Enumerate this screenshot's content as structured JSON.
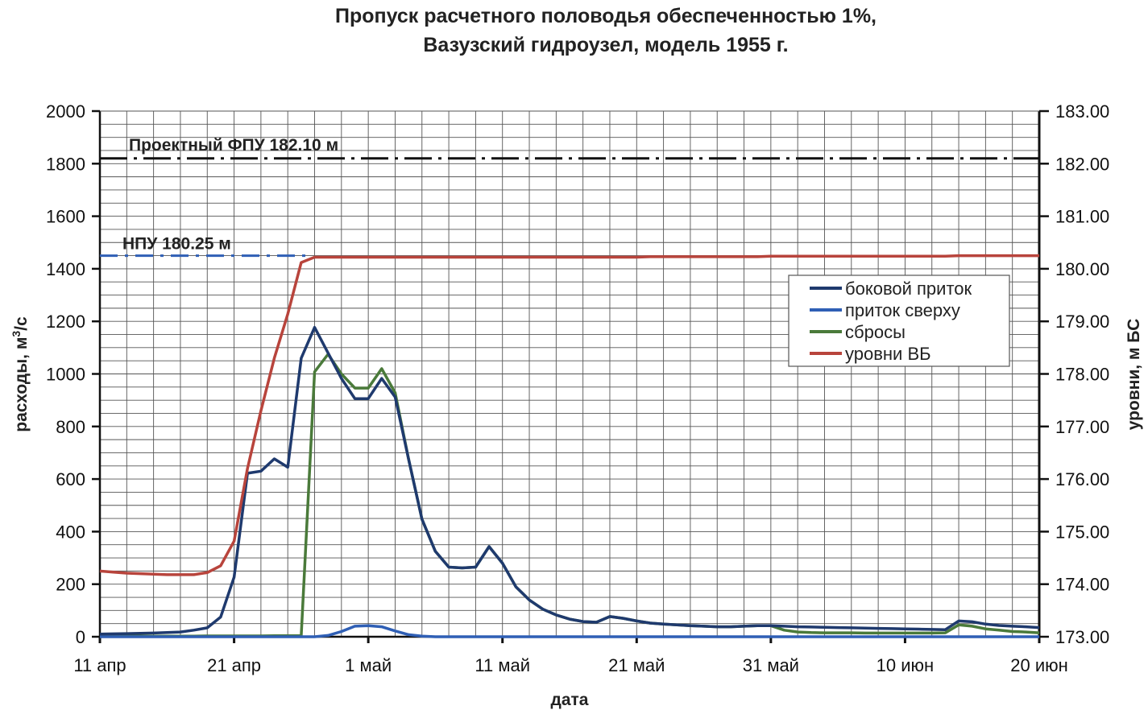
{
  "chart_data": {
    "type": "line",
    "title": [
      "Пропуск расчетного половодья обеспеченностью 1%,",
      "Вазузский гидроузел, модель 1955 г."
    ],
    "xlabel": "дата",
    "ylabel": "расходы, м³/с",
    "ylabel_parts": [
      "расходы, м",
      "3",
      "/с"
    ],
    "y2label": "уровни, м БС",
    "x_tick_labels": [
      "11 апр",
      "21 апр",
      "1 май",
      "11 май",
      "21 май",
      "31 май",
      "10 июн",
      "20 июн"
    ],
    "x_start": "11 апр",
    "x_days": [
      0,
      1,
      2,
      3,
      4,
      5,
      6,
      7,
      8,
      9,
      10,
      11,
      12,
      13,
      14,
      15,
      16,
      17,
      18,
      19,
      20,
      21,
      22,
      23,
      24,
      25,
      26,
      27,
      28,
      29,
      30,
      31,
      32,
      33,
      34,
      35,
      36,
      37,
      38,
      39,
      40,
      41,
      42,
      43,
      44,
      45,
      46,
      47,
      48,
      49,
      50,
      51,
      52,
      53,
      54,
      55,
      56,
      57,
      58,
      59,
      60,
      61,
      62,
      63,
      64,
      65,
      66,
      67,
      68,
      69,
      70
    ],
    "ylim": [
      0,
      2000
    ],
    "y_ticks": [
      "0",
      "200",
      "400",
      "600",
      "800",
      "1000",
      "1200",
      "1400",
      "1600",
      "1800",
      "2000"
    ],
    "y2lim": [
      173,
      183
    ],
    "y2_ticks": [
      "173.00",
      "174.00",
      "175.00",
      "176.00",
      "177.00",
      "178.00",
      "179.00",
      "180.00",
      "181.00",
      "182.00",
      "183.00"
    ],
    "grid": true,
    "legend_position": "right",
    "series": [
      {
        "name": "боковой приток",
        "axis": "left",
        "color": "#1f3a6e",
        "values": [
          10,
          11,
          12,
          13,
          14,
          16,
          18,
          25,
          34,
          75,
          227,
          622,
          630,
          677,
          645,
          1060,
          1177,
          1080,
          983,
          906,
          906,
          983,
          912,
          677,
          447,
          325,
          265,
          262,
          265,
          343,
          280,
          190,
          140,
          105,
          83,
          67,
          58,
          55,
          77,
          70,
          60,
          52,
          48,
          45,
          42,
          40,
          38,
          38,
          40,
          42,
          42,
          40,
          38,
          37,
          36,
          35,
          34,
          33,
          32,
          31,
          30,
          29,
          28,
          27,
          60,
          57,
          48,
          43,
          40,
          38,
          35
        ]
      },
      {
        "name": "приток сверху",
        "axis": "left",
        "color": "#2f5fb5",
        "values": [
          0,
          0,
          0,
          0,
          0,
          0,
          0,
          0,
          0,
          0,
          0,
          0,
          0,
          0,
          0,
          0,
          0,
          5,
          20,
          40,
          42,
          38,
          22,
          8,
          2,
          0,
          0,
          0,
          0,
          0,
          0,
          0,
          0,
          0,
          0,
          0,
          0,
          0,
          0,
          0,
          0,
          0,
          0,
          0,
          0,
          0,
          0,
          0,
          0,
          0,
          0,
          0,
          0,
          0,
          0,
          0,
          0,
          0,
          0,
          0,
          0,
          0,
          0,
          0,
          0,
          0,
          0,
          0,
          0,
          0,
          0
        ]
      },
      {
        "name": "сбросы",
        "axis": "left",
        "color": "#4a7a3a",
        "values": [
          2,
          2,
          2,
          2,
          2,
          2,
          2,
          2,
          3,
          3,
          3,
          3,
          3,
          4,
          4,
          4,
          1008,
          1075,
          1000,
          946,
          946,
          1020,
          928,
          677,
          447,
          325,
          265,
          262,
          265,
          343,
          280,
          190,
          140,
          105,
          83,
          67,
          58,
          55,
          77,
          70,
          60,
          52,
          48,
          45,
          42,
          40,
          38,
          38,
          40,
          42,
          42,
          25,
          18,
          16,
          15,
          15,
          15,
          14,
          14,
          14,
          14,
          14,
          14,
          15,
          45,
          40,
          30,
          25,
          20,
          18,
          15
        ]
      },
      {
        "name": "уровни ВБ",
        "axis": "right",
        "color": "#b8443c",
        "values": [
          174.25,
          174.23,
          174.21,
          174.2,
          174.19,
          174.18,
          174.18,
          174.18,
          174.22,
          174.35,
          174.82,
          176.2,
          177.3,
          178.3,
          179.14,
          180.12,
          180.22,
          180.22,
          180.22,
          180.22,
          180.22,
          180.22,
          180.22,
          180.22,
          180.22,
          180.22,
          180.22,
          180.22,
          180.22,
          180.22,
          180.22,
          180.22,
          180.22,
          180.22,
          180.22,
          180.22,
          180.22,
          180.22,
          180.22,
          180.22,
          180.22,
          180.23,
          180.23,
          180.23,
          180.23,
          180.23,
          180.23,
          180.23,
          180.23,
          180.23,
          180.24,
          180.24,
          180.24,
          180.24,
          180.24,
          180.24,
          180.24,
          180.24,
          180.24,
          180.24,
          180.24,
          180.24,
          180.24,
          180.24,
          180.25,
          180.25,
          180.25,
          180.25,
          180.25,
          180.25,
          180.25
        ]
      }
    ],
    "reference_lines": [
      {
        "label": "Проектный ФПУ 182.10 м",
        "value": 182.1,
        "axis": "right",
        "style": "dash-dot",
        "color": "#111111"
      },
      {
        "label": "НПУ 180.25 м",
        "value": 180.25,
        "axis": "right",
        "style": "dashed",
        "color": "#2f5fb5"
      }
    ]
  }
}
